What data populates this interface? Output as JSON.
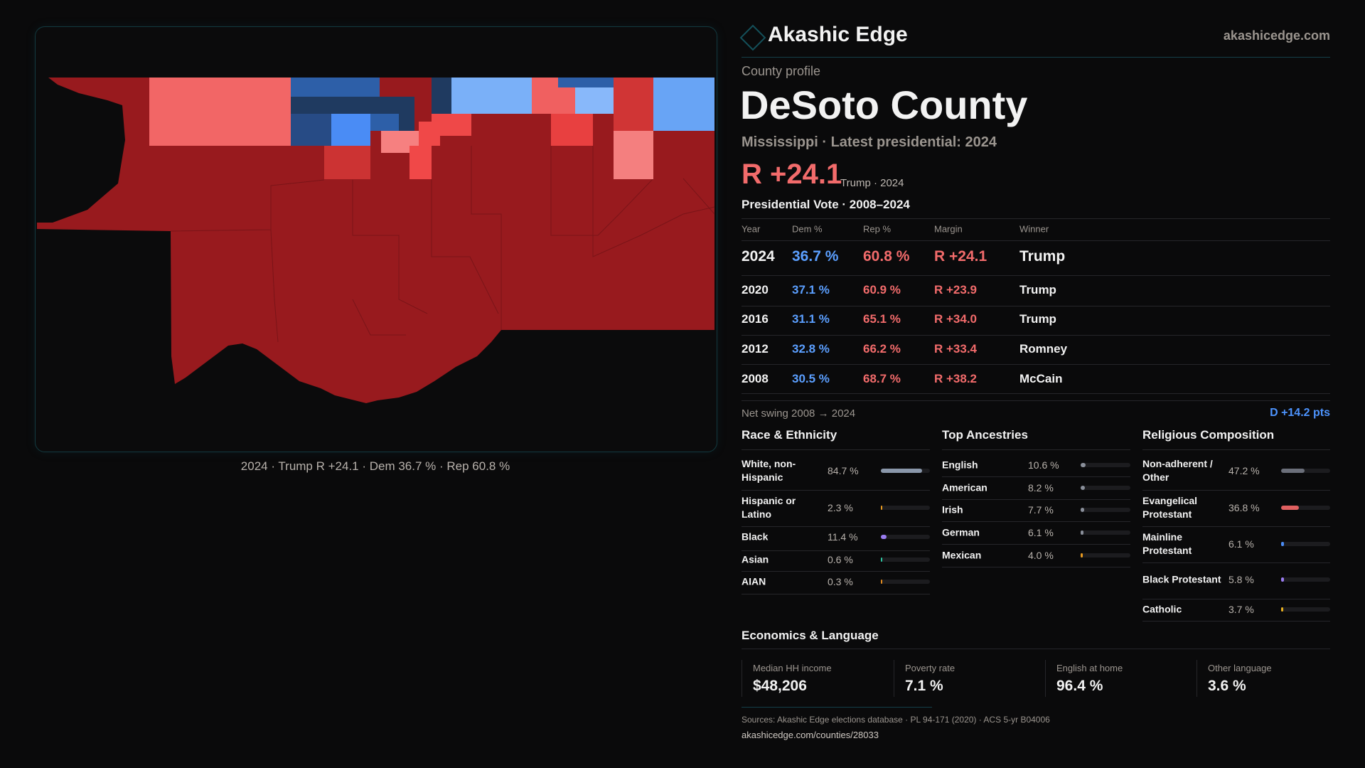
{
  "header": {
    "brand": "Akashic Edge",
    "site": "akashicedge.com"
  },
  "profile": {
    "kicker": "County profile",
    "title": "DeSoto County",
    "subtitle": "Mississippi · Latest presidential: 2024",
    "margin": "R +24.1",
    "margin_note": "Trump · 2024"
  },
  "map": {
    "caption": "2024 · Trump R +24.1 · Dem 36.7 % · Rep 60.8 %"
  },
  "vote": {
    "title": "Presidential Vote · 2008–2024",
    "columns": [
      "Year",
      "Dem %",
      "Rep %",
      "Margin",
      "Winner"
    ],
    "rows": [
      {
        "year": "2024",
        "dem": "36.7 %",
        "rep": "60.8 %",
        "margin": "R +24.1",
        "winner": "Trump"
      },
      {
        "year": "2020",
        "dem": "37.1 %",
        "rep": "60.9 %",
        "margin": "R +23.9",
        "winner": "Trump"
      },
      {
        "year": "2016",
        "dem": "31.1 %",
        "rep": "65.1 %",
        "margin": "R +34.0",
        "winner": "Trump"
      },
      {
        "year": "2012",
        "dem": "32.8 %",
        "rep": "66.2 %",
        "margin": "R +33.4",
        "winner": "Romney"
      },
      {
        "year": "2008",
        "dem": "30.5 %",
        "rep": "68.7 %",
        "margin": "R +38.2",
        "winner": "McCain"
      }
    ],
    "swing_label": "Net swing 2008 → 2024",
    "swing_value": "D +14.2 pts"
  },
  "race": {
    "title": "Race & Ethnicity",
    "items": [
      {
        "label": "White, non-Hispanic",
        "value": "84.7 %",
        "pct": 84.7,
        "color": "#8a97aa"
      },
      {
        "label": "Hispanic or Latino",
        "value": "2.3 %",
        "pct": 2.3,
        "color": "#e89a20"
      },
      {
        "label": "Black",
        "value": "11.4 %",
        "pct": 11.4,
        "color": "#9a7cf0"
      },
      {
        "label": "Asian",
        "value": "0.6 %",
        "pct": 0.6,
        "color": "#2ec4a0"
      },
      {
        "label": "AIAN",
        "value": "0.3 %",
        "pct": 0.3,
        "color": "#e08a20"
      }
    ]
  },
  "ancestry": {
    "title": "Top Ancestries",
    "items": [
      {
        "label": "English",
        "value": "10.6 %",
        "pct": 10.6,
        "color": "#8a8f9a"
      },
      {
        "label": "American",
        "value": "8.2 %",
        "pct": 8.2,
        "color": "#8a8f9a"
      },
      {
        "label": "Irish",
        "value": "7.7 %",
        "pct": 7.7,
        "color": "#8a8f9a"
      },
      {
        "label": "German",
        "value": "6.1 %",
        "pct": 6.1,
        "color": "#8a8f9a"
      },
      {
        "label": "Mexican",
        "value": "4.0 %",
        "pct": 4.0,
        "color": "#e89a20"
      }
    ]
  },
  "religion": {
    "title": "Religious Composition",
    "items": [
      {
        "label": "Non-adherent / Other",
        "value": "47.2 %",
        "pct": 47.2,
        "color": "#6b6f7a"
      },
      {
        "label": "Evangelical Protestant",
        "value": "36.8 %",
        "pct": 36.8,
        "color": "#e06060"
      },
      {
        "label": "Mainline Protestant",
        "value": "6.1 %",
        "pct": 6.1,
        "color": "#4a8cf5"
      },
      {
        "label": "Black Protestant",
        "value": "5.8 %",
        "pct": 5.8,
        "color": "#9a7cf0"
      },
      {
        "label": "Catholic",
        "value": "3.7 %",
        "pct": 3.7,
        "color": "#e8b020"
      }
    ]
  },
  "economics": {
    "title": "Economics & Language",
    "cards": [
      {
        "label": "Median HH income",
        "value": "$48,206"
      },
      {
        "label": "Poverty rate",
        "value": "7.1 %"
      },
      {
        "label": "English at home",
        "value": "96.4 %"
      },
      {
        "label": "Other language",
        "value": "3.6 %"
      }
    ]
  },
  "footer": {
    "sources": "Sources: Akashic Edge elections database · PL 94-171 (2020) · ACS 5-yr B04006",
    "url": "akashicedge.com/counties/28033"
  },
  "colors": {
    "dem": "#5b9fff",
    "rep": "#f26b6b",
    "accent": "#14505a"
  }
}
